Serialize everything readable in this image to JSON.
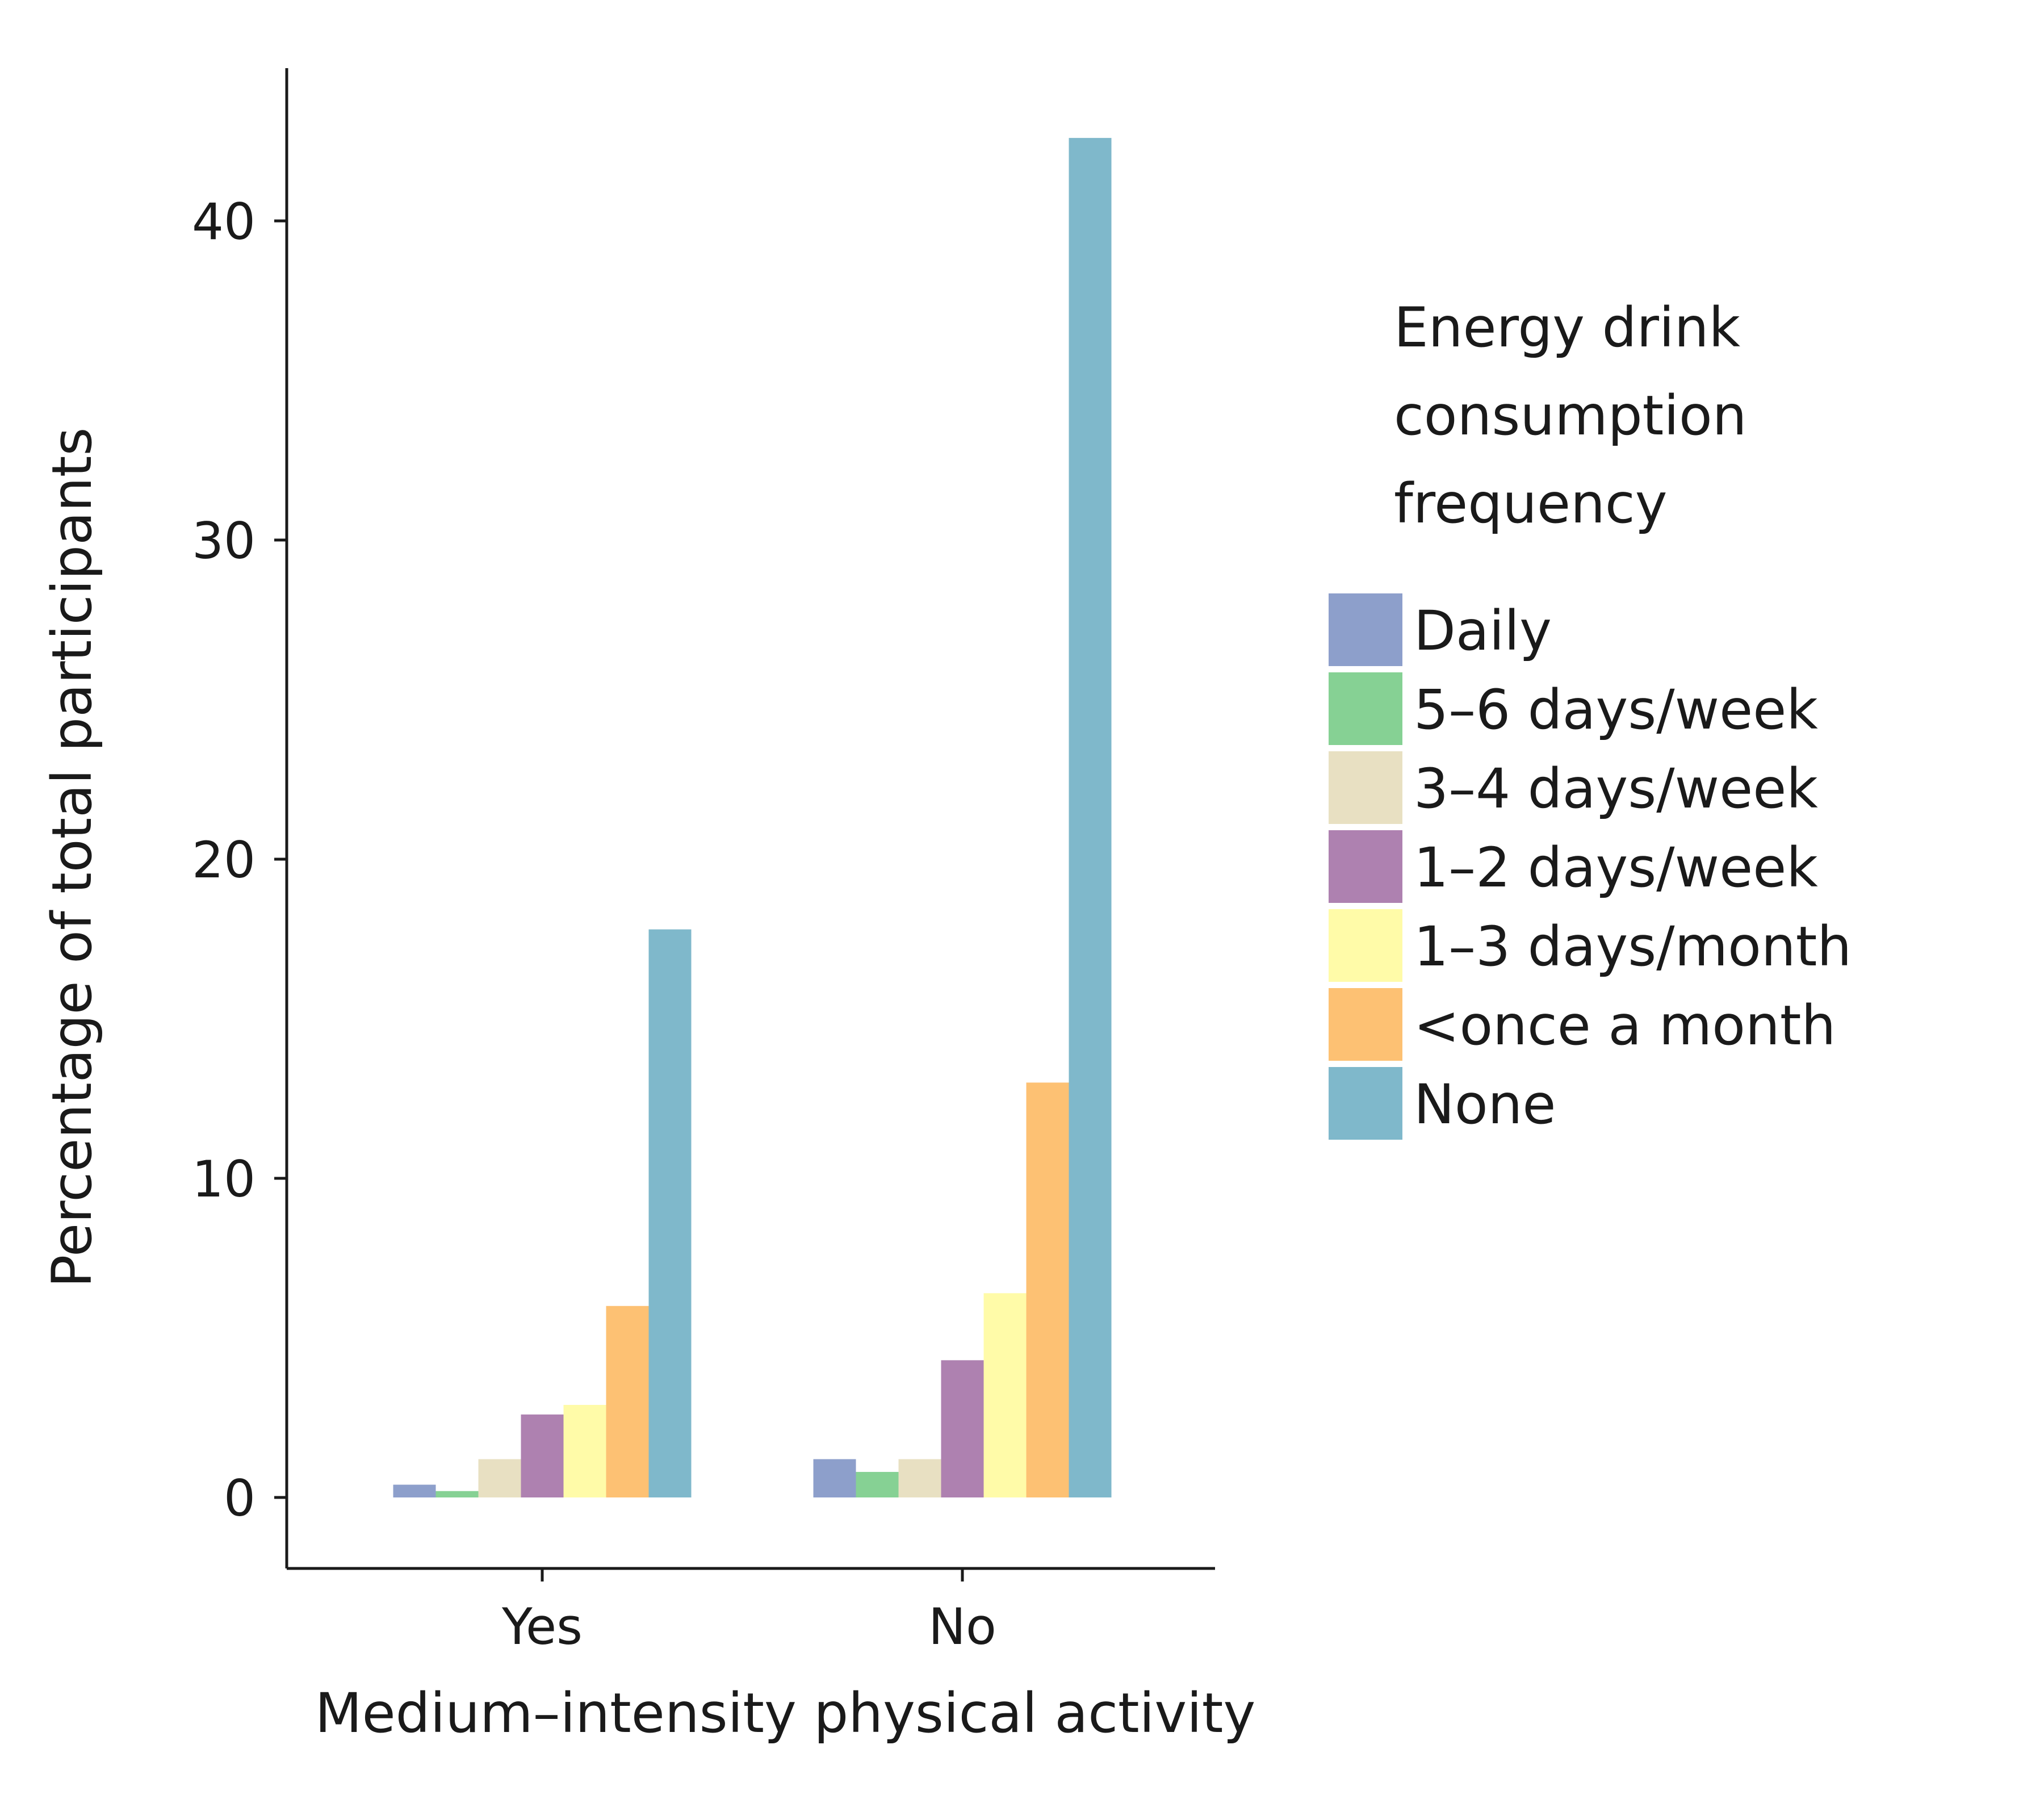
{
  "chart_data": {
    "type": "bar",
    "title": "",
    "xlabel": "Medium–intensity physical activity",
    "ylabel": "Percentage of total participants",
    "categories": [
      "Yes",
      "No"
    ],
    "ylim": [
      -2,
      44
    ],
    "yticks": [
      0,
      10,
      20,
      30,
      40
    ],
    "grid": false,
    "legend": {
      "title_lines": [
        "Energy drink",
        "consumption",
        "frequency"
      ],
      "position": "right"
    },
    "series": [
      {
        "name": "Daily",
        "color": "#8d9fcb",
        "values": [
          0.4,
          1.2
        ]
      },
      {
        "name": "5–6 days/week",
        "color": "#86d194",
        "values": [
          0.2,
          0.8
        ]
      },
      {
        "name": "3–4 days/week",
        "color": "#e8e0c2",
        "values": [
          1.2,
          1.2
        ]
      },
      {
        "name": "1–2 days/week",
        "color": "#ae81b0",
        "values": [
          2.6,
          4.3
        ]
      },
      {
        "name": "1–3 days/month",
        "color": "#fffba8",
        "values": [
          2.9,
          6.4
        ]
      },
      {
        "name": "<once a month",
        "color": "#fdc173",
        "values": [
          6.0,
          13.0
        ]
      },
      {
        "name": "None",
        "color": "#7fb8cb",
        "values": [
          17.8,
          42.6
        ]
      }
    ]
  }
}
